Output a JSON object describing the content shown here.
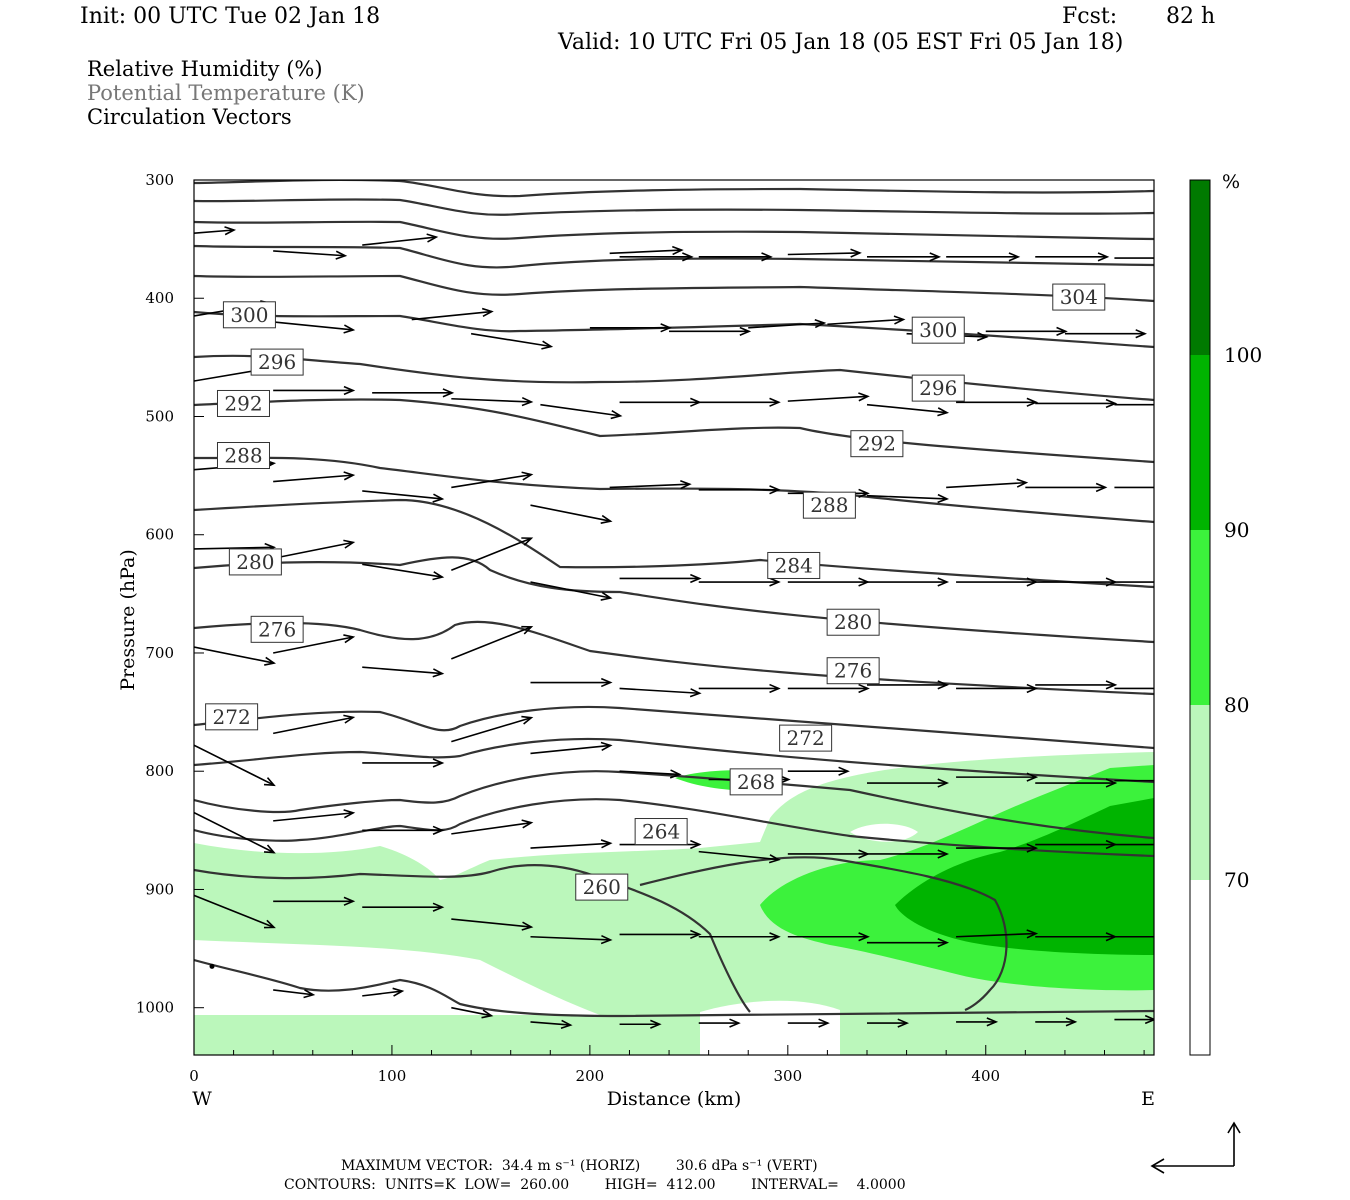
{
  "header": {
    "init": "Init: 00 UTC Tue 02 Jan 18",
    "fcst_label": "Fcst:",
    "fcst_value": "82 h",
    "valid": "Valid: 10 UTC Fri 05 Jan 18 (05 EST Fri 05 Jan 18)"
  },
  "legend": {
    "rh": "Relative Humidity (%)",
    "theta": "Potential Temperature (K)",
    "vectors": "Circulation Vectors"
  },
  "footer": {
    "line1": "MAXIMUM VECTOR:  34.4 m s⁻¹ (HORIZ)        30.6 dPa s⁻¹ (VERT)",
    "line2": "CONTOURS:  UNITS=K  LOW=  260.00        HIGH=  412.00        INTERVAL=    4.0000"
  },
  "colors": {
    "rh_70_80": "#bbf7bb",
    "rh_80_90": "#3cf23c",
    "rh_90_100": "#00b400",
    "rh_100": "#007a00",
    "contour": "#333333"
  },
  "chart_data": {
    "type": "cross-section",
    "xlabel": "Distance (km)",
    "ylabel": "Pressure (hPa)",
    "xlim": [
      0,
      485
    ],
    "ylim": [
      1040,
      300
    ],
    "x_ticks": [
      0,
      100,
      200,
      300,
      400
    ],
    "x_tick_labels": [
      "0",
      "100",
      "200",
      "300",
      "400"
    ],
    "y_ticks": [
      300,
      400,
      500,
      600,
      700,
      800,
      900,
      1000
    ],
    "y_tick_labels": [
      "300",
      "400",
      "500",
      "600",
      "700",
      "800",
      "900",
      "1000"
    ],
    "west_label": "W",
    "east_label": "E",
    "colorbar": {
      "unit": "%",
      "levels": [
        70,
        80,
        90,
        100
      ],
      "level_labels": [
        "70",
        "80",
        "90",
        "100"
      ]
    },
    "contour_labels": [
      {
        "text": "304",
        "x": 447,
        "p": 399
      },
      {
        "text": "300",
        "x": 28,
        "p": 414
      },
      {
        "text": "300",
        "x": 376,
        "p": 427
      },
      {
        "text": "296",
        "x": 42,
        "p": 454
      },
      {
        "text": "296",
        "x": 376,
        "p": 476
      },
      {
        "text": "292",
        "x": 25,
        "p": 489
      },
      {
        "text": "292",
        "x": 345,
        "p": 523
      },
      {
        "text": "288",
        "x": 25,
        "p": 533
      },
      {
        "text": "288",
        "x": 321,
        "p": 575
      },
      {
        "text": "280",
        "x": 31,
        "p": 623
      },
      {
        "text": "284",
        "x": 303,
        "p": 626
      },
      {
        "text": "276",
        "x": 42,
        "p": 680
      },
      {
        "text": "280",
        "x": 333,
        "p": 674
      },
      {
        "text": "276",
        "x": 333,
        "p": 715
      },
      {
        "text": "272",
        "x": 19,
        "p": 754
      },
      {
        "text": "272",
        "x": 309,
        "p": 772
      },
      {
        "text": "268",
        "x": 284,
        "p": 809
      },
      {
        "text": "264",
        "x": 236,
        "p": 851
      },
      {
        "text": "260",
        "x": 206,
        "p": 898
      }
    ]
  }
}
